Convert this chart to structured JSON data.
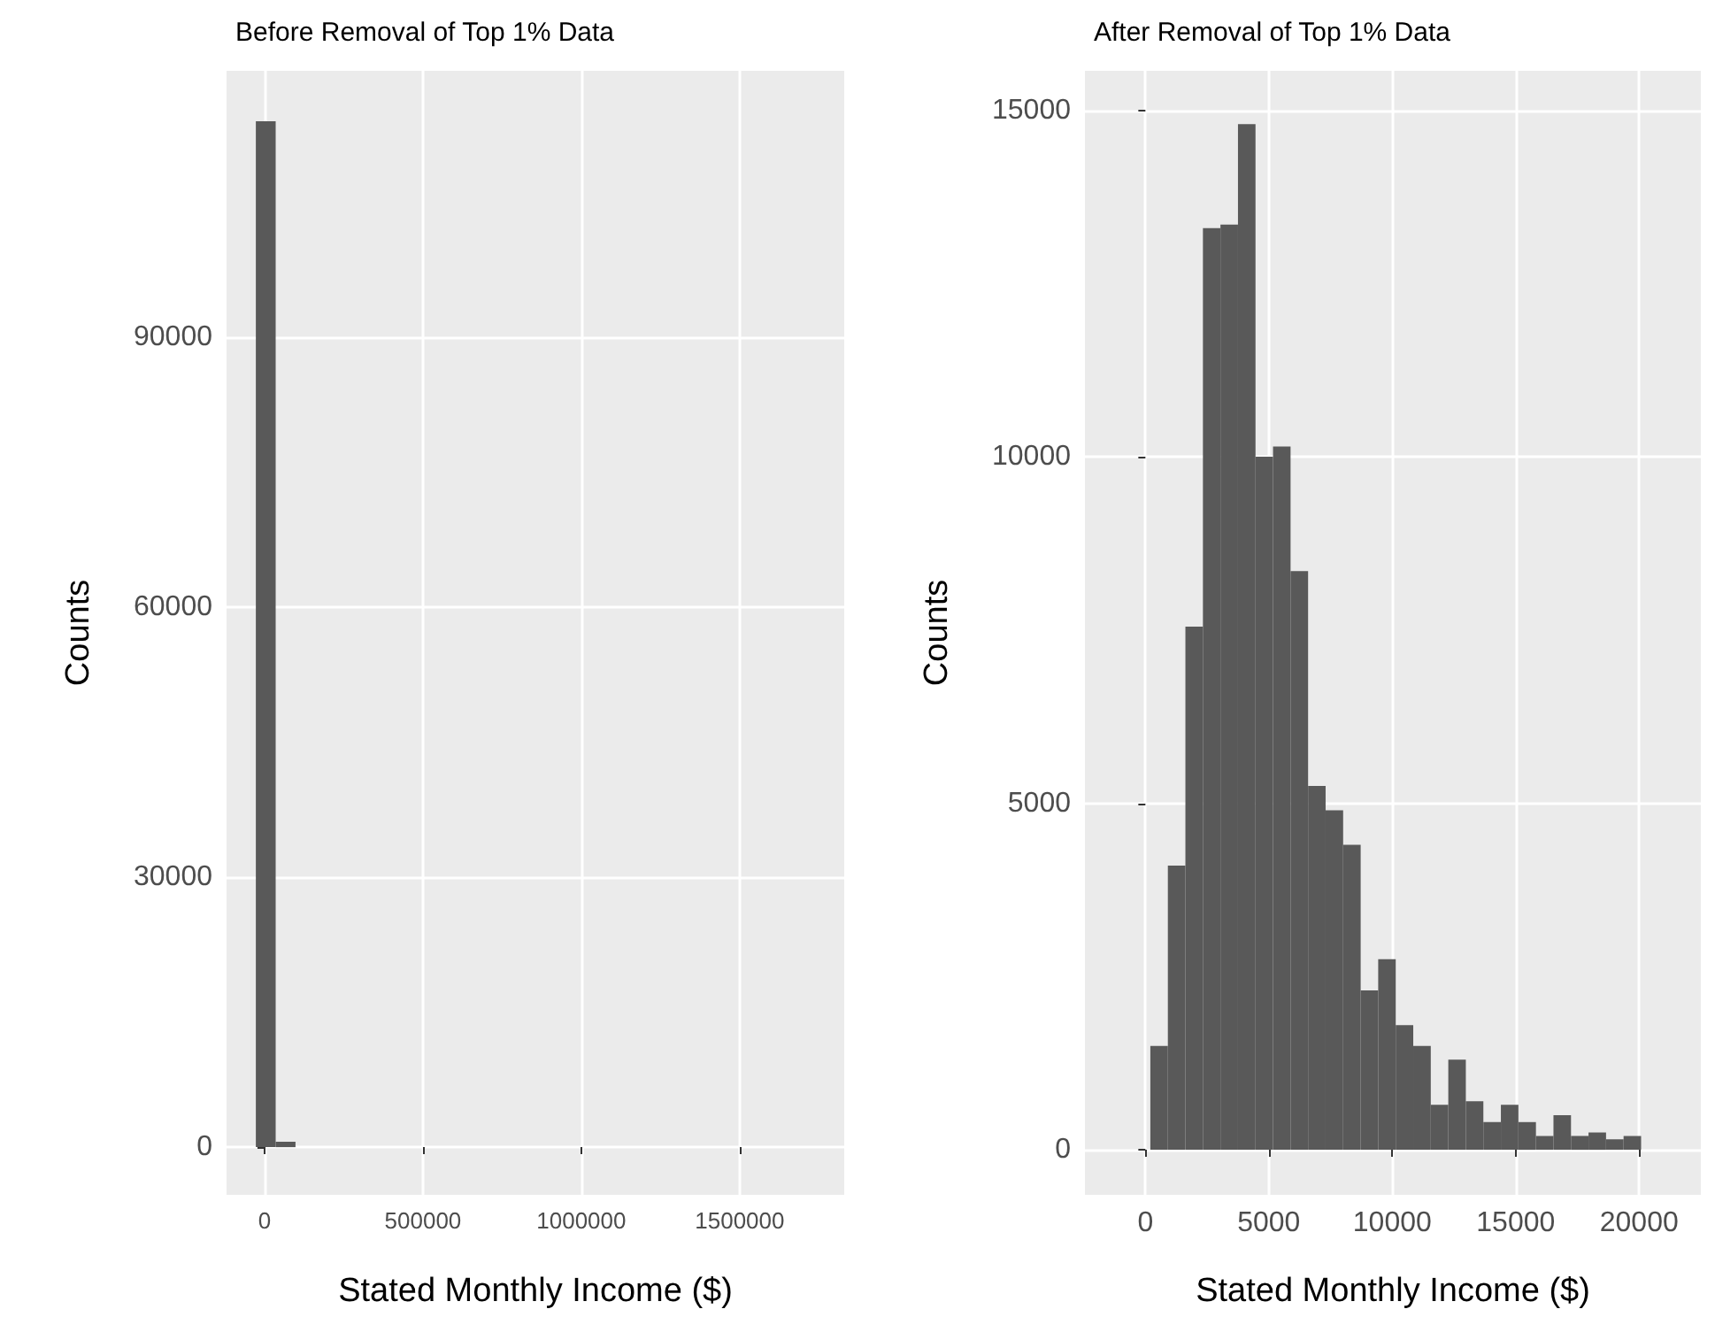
{
  "chart_data": [
    {
      "type": "histogram",
      "title": "Before Removal of Top 1% Data",
      "xlabel": "Stated Monthly Income ($)",
      "ylabel": "Counts",
      "bins": [
        -27500,
        35100,
        97700
      ],
      "values": [
        114000,
        600
      ],
      "color": "#595959",
      "xlim": [
        -120000,
        1830000
      ],
      "ylim": [
        -5300,
        119600
      ],
      "xticks": [
        0,
        500000,
        1000000,
        1500000
      ],
      "yticks": [
        0,
        30000,
        60000,
        90000
      ],
      "grid": true
    },
    {
      "type": "histogram",
      "title": "After Removal of Top 1% Data",
      "xlabel": "Stated Monthly Income ($)",
      "ylabel": "Counts",
      "bins": [
        200,
        910,
        1620,
        2330,
        3040,
        3750,
        4460,
        5170,
        5880,
        6590,
        7300,
        8010,
        8720,
        9430,
        10140,
        10850,
        11560,
        12270,
        12980,
        13690,
        14400,
        15110,
        15820,
        16530,
        17240,
        17950,
        18660,
        19370,
        20080
      ],
      "values": [
        1500,
        4100,
        7550,
        13300,
        13350,
        14800,
        10000,
        10150,
        8350,
        5250,
        4900,
        4400,
        2300,
        2750,
        1800,
        1500,
        650,
        1300,
        700,
        400,
        650,
        400,
        200,
        500,
        200,
        250,
        150,
        200
      ],
      "color": "#595959",
      "xlim": [
        -2450,
        22500
      ],
      "ylim": [
        -650,
        15570
      ],
      "xticks": [
        0,
        5000,
        10000,
        15000,
        20000
      ],
      "yticks": [
        0,
        5000,
        10000,
        15000
      ],
      "grid": true
    }
  ]
}
